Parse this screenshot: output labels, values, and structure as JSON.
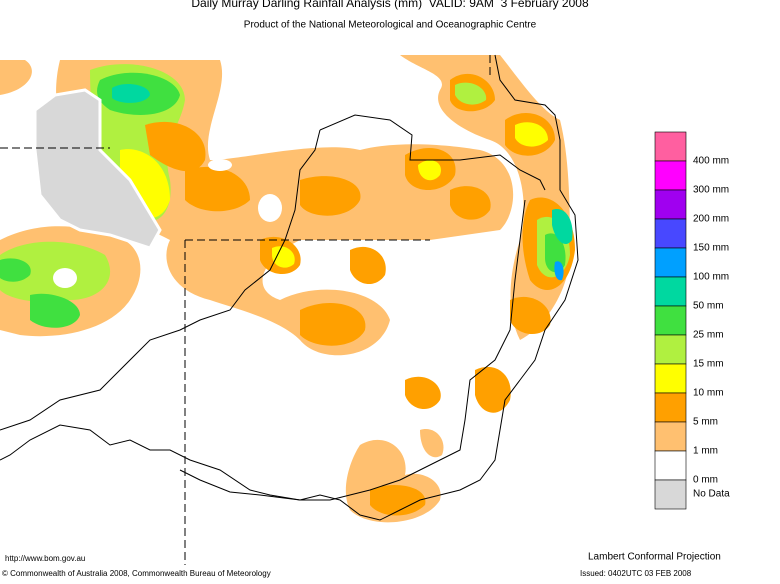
{
  "header": {
    "title": "Daily Murray Darling Rainfall Analysis (mm)  VALID: 9AM  3 February 2008",
    "subtitle": "Product of the National Meteorological and Oceanographic Centre"
  },
  "legend": [
    {
      "label": "400 mm",
      "color": "#ff5fa0"
    },
    {
      "label": "300 mm",
      "color": "#ff00ff"
    },
    {
      "label": "200 mm",
      "color": "#a000f0"
    },
    {
      "label": "150 mm",
      "color": "#4848ff"
    },
    {
      "label": "100 mm",
      "color": "#00a0ff"
    },
    {
      "label": "50 mm",
      "color": "#00d8a0"
    },
    {
      "label": "25 mm",
      "color": "#40e040"
    },
    {
      "label": "15 mm",
      "color": "#b0f040"
    },
    {
      "label": "10 mm",
      "color": "#ffff00"
    },
    {
      "label": "5 mm",
      "color": "#ffa000"
    },
    {
      "label": "1 mm",
      "color": "#ffc070"
    },
    {
      "label": "0 mm",
      "color": "#ffffff"
    },
    {
      "label": "No Data",
      "color": "#d8d8d8"
    }
  ],
  "footer": {
    "url": "http://www.bom.gov.au",
    "projection": "Lambert Conformal Projection",
    "copyright": "© Commonwealth of Australia 2008, Commonwealth Bureau of Meteorology",
    "issued": "Issued: 0402UTC 03 FEB 2008"
  }
}
